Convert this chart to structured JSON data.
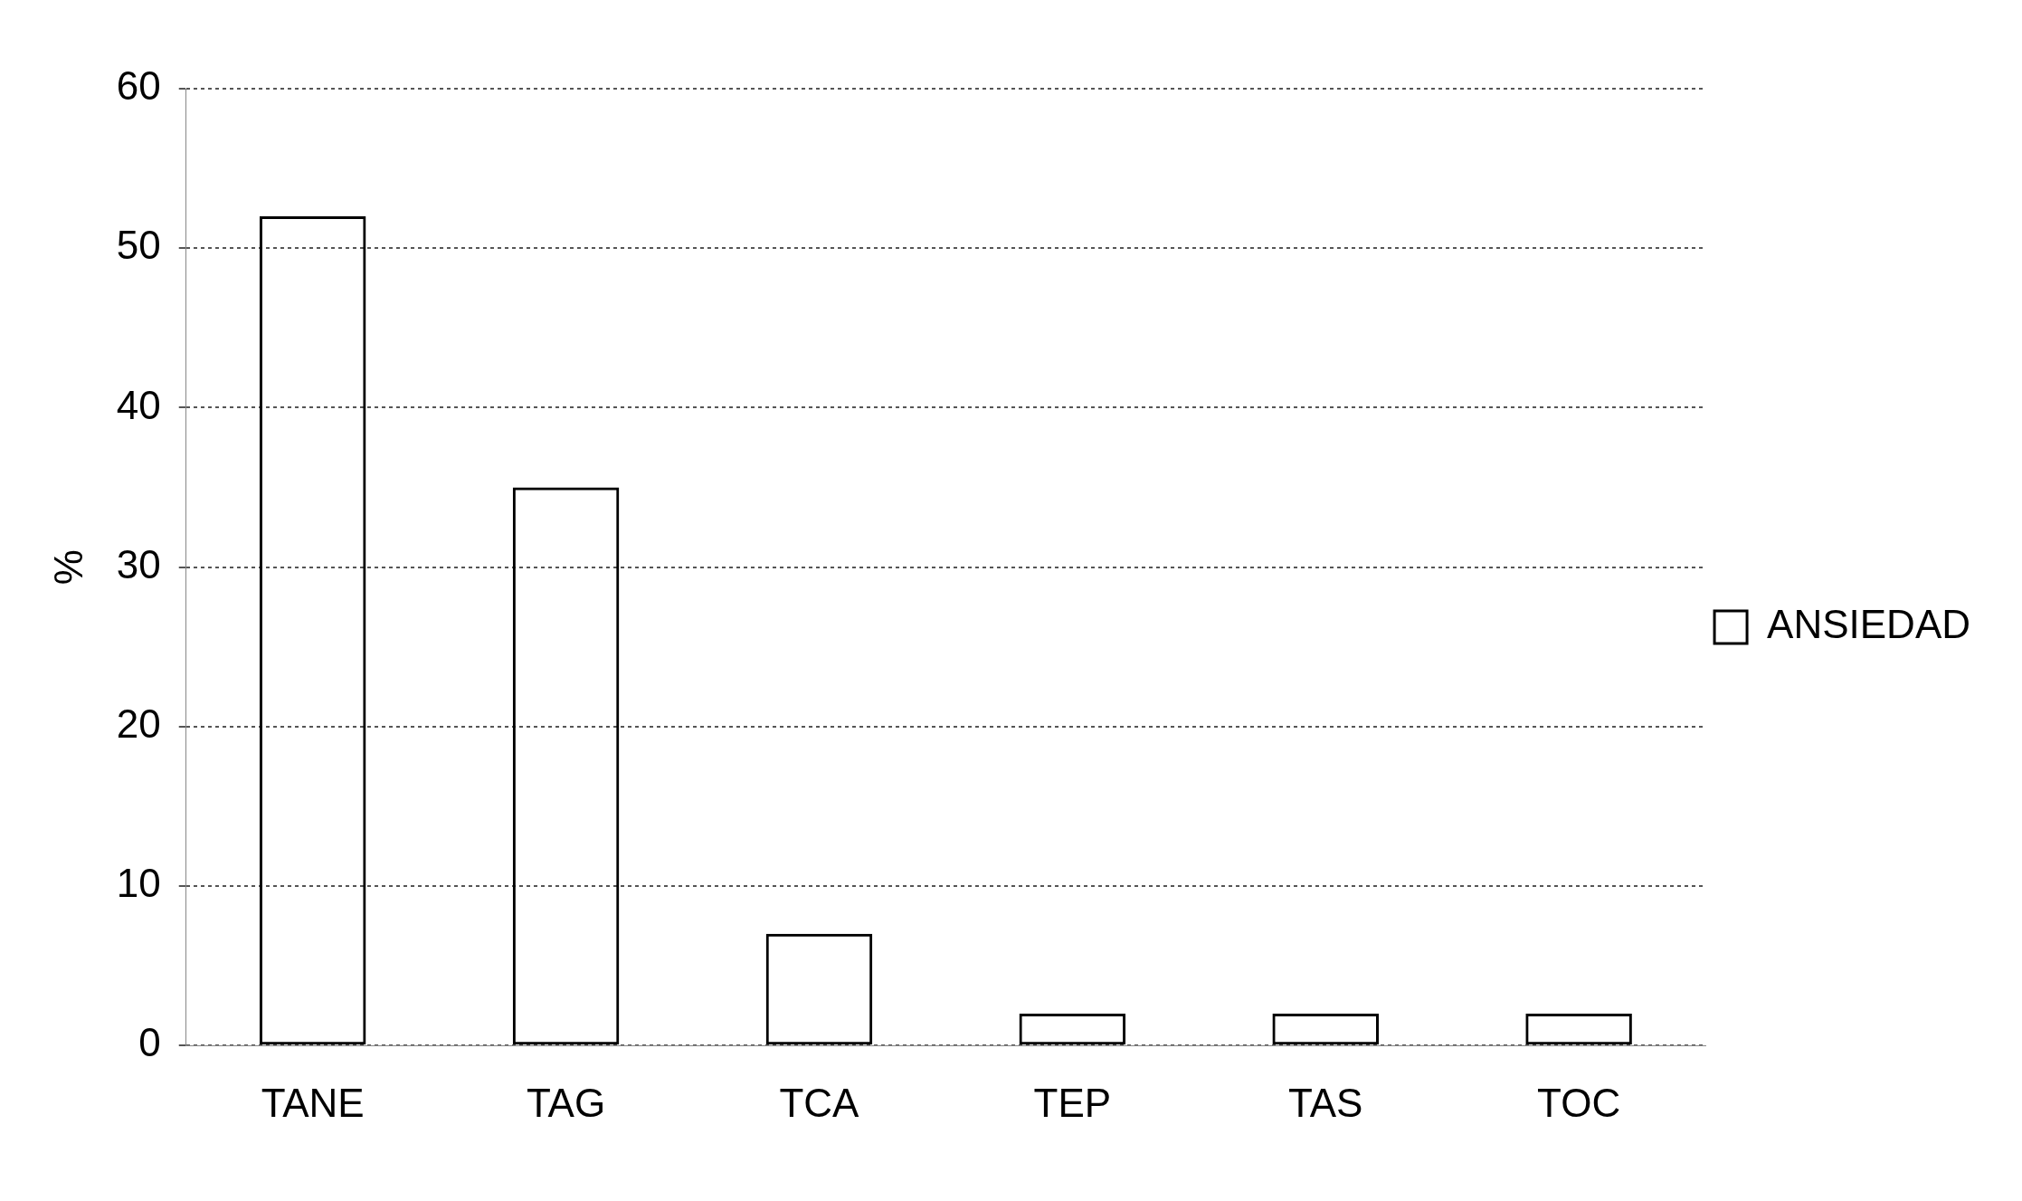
{
  "chart_data": {
    "type": "bar",
    "ylabel": "%",
    "categories": [
      "TANE",
      "TAG",
      "TCA",
      "TEP",
      "TAS",
      "TOC"
    ],
    "series": [
      {
        "name": "ANSIEDAD",
        "color": "#000000",
        "values": [
          52,
          35,
          7,
          2,
          2,
          2
        ]
      }
    ],
    "ylim": [
      0,
      60
    ],
    "yticks": [
      0,
      10,
      20,
      30,
      40,
      50,
      60
    ],
    "grid": "y",
    "legend": "right"
  }
}
